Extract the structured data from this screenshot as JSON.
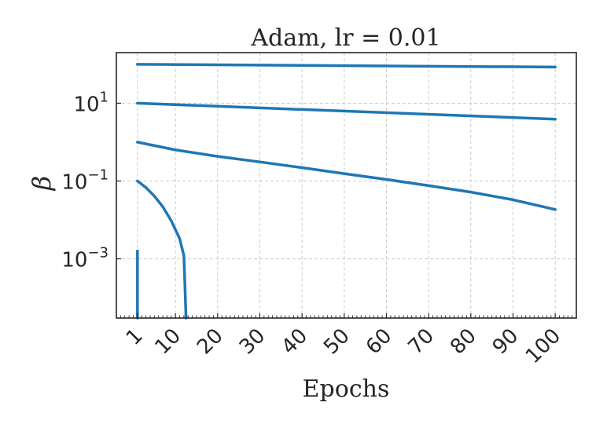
{
  "chart_data": {
    "type": "line",
    "title": "Adam, lr = 0.01",
    "xlabel": "Epochs",
    "ylabel": "β",
    "xscale": "linear",
    "yscale": "log",
    "xlim": [
      -4,
      105
    ],
    "ylim": [
      3e-05,
      200
    ],
    "xticks": [
      1,
      10,
      20,
      30,
      40,
      50,
      60,
      70,
      80,
      90,
      100
    ],
    "xtick_labels": [
      "1",
      "10",
      "20",
      "30",
      "40",
      "50",
      "60",
      "70",
      "80",
      "90",
      "100"
    ],
    "yticks": [
      {
        "value": 10,
        "base": "10",
        "exp": "1"
      },
      {
        "value": 0.1,
        "base": "10",
        "exp": "−1"
      },
      {
        "value": 0.001,
        "base": "10",
        "exp": "−3"
      }
    ],
    "grid": true,
    "color": "#1f77b4",
    "series": [
      {
        "x": [
          1,
          100
        ],
        "y": [
          100,
          85
        ]
      },
      {
        "x": [
          1,
          100
        ],
        "y": [
          10,
          3.9
        ]
      },
      {
        "x": [
          1,
          10,
          20,
          30,
          40,
          50,
          60,
          70,
          80,
          90,
          100
        ],
        "y": [
          1.0,
          0.63,
          0.43,
          0.31,
          0.22,
          0.155,
          0.11,
          0.076,
          0.052,
          0.033,
          0.0185
        ]
      },
      {
        "x": [
          1,
          3,
          5,
          7,
          9,
          11,
          12,
          12.5
        ],
        "y": [
          0.1,
          0.068,
          0.041,
          0.022,
          0.0095,
          0.0033,
          0.0012,
          3e-05
        ]
      },
      {
        "x": [
          1,
          1
        ],
        "y": [
          0.0016,
          3e-05
        ]
      }
    ]
  }
}
